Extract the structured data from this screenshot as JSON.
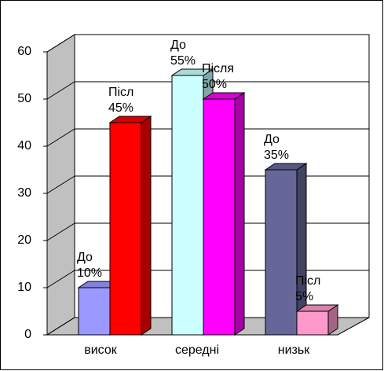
{
  "chart_data": {
    "type": "bar3d",
    "categories": [
      "висок",
      "середні",
      "низьк"
    ],
    "series": [
      {
        "values": [
          10,
          55,
          35
        ],
        "value_labels": [
          "10%",
          "55%",
          "35%"
        ],
        "point_labels": [
          "До",
          "До",
          "До"
        ],
        "colors": [
          "#9999ff",
          "#ccffff",
          "#666699"
        ]
      },
      {
        "values": [
          45,
          50,
          5
        ],
        "value_labels": [
          "45%",
          "50%",
          "5%"
        ],
        "point_labels": [
          "Післ",
          "Після",
          "Післ"
        ],
        "colors": [
          "#ff0000",
          "#ff00ff",
          "#ff99cc"
        ]
      }
    ],
    "ylim": [
      0,
      60
    ],
    "yticks": [
      0,
      10,
      20,
      30,
      40,
      50,
      60
    ],
    "grid": true
  }
}
